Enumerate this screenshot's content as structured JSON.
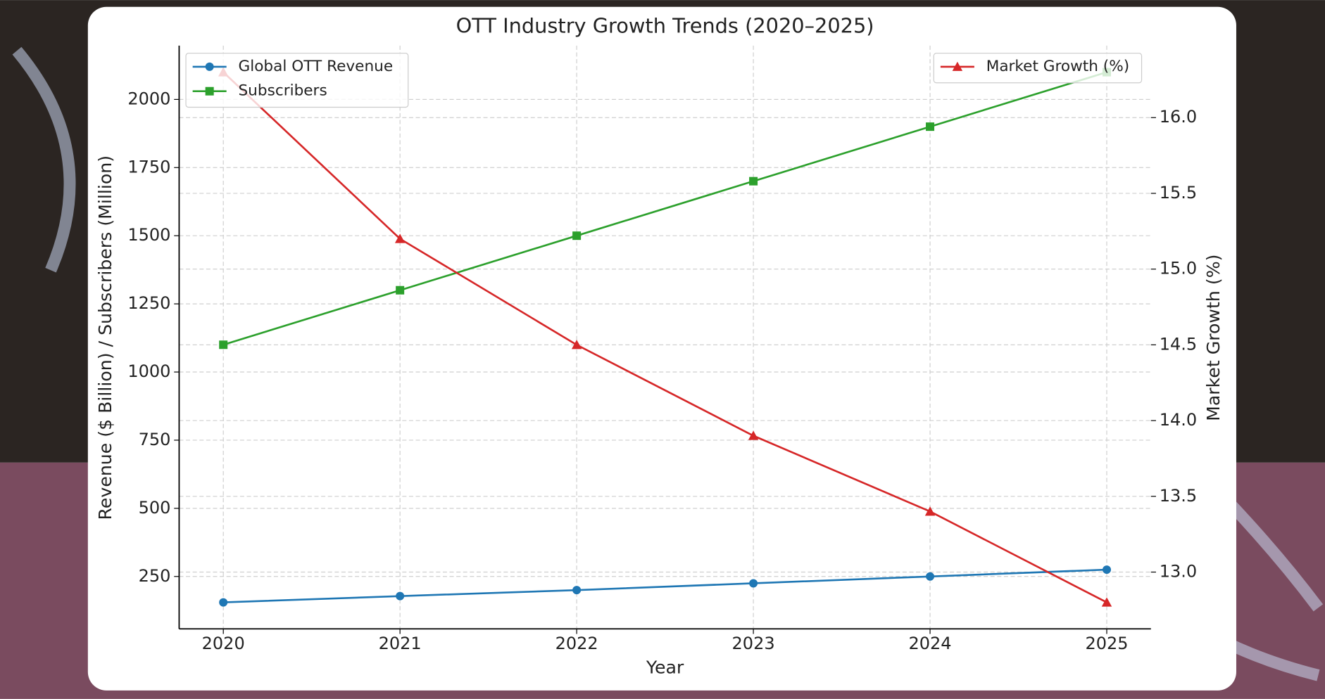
{
  "chart_data": {
    "type": "line",
    "title": "OTT Industry Growth Trends (2020–2025)",
    "x_label": "Year",
    "y_label": "Revenue ($ Billion) / Subscribers (Million)",
    "y2_label": "Market Growth (%)",
    "x": [
      2020,
      2021,
      2022,
      2023,
      2024,
      2025
    ],
    "series": [
      {
        "name": "Global OTT Revenue",
        "color": "#1f77b4",
        "marker": "circle",
        "values": [
          155,
          178,
          200,
          225,
          250,
          275
        ]
      },
      {
        "name": "Subscribers",
        "color": "#2ca02c",
        "marker": "square",
        "values": [
          1100,
          1300,
          1500,
          1700,
          1900,
          2100
        ]
      },
      {
        "name": "Market Growth (%)",
        "color": "#d62728",
        "marker": "triangle",
        "axis": "y2",
        "values": [
          16.3,
          15.2,
          14.5,
          13.9,
          13.4,
          12.8
        ]
      }
    ],
    "xlim": [
      2019.75,
      2025.25
    ],
    "xticks": [
      2020,
      2021,
      2022,
      2023,
      2024,
      2025
    ],
    "ylim": [
      57.75,
      2197.25
    ],
    "yticks": [
      250,
      500,
      750,
      1000,
      1250,
      1500,
      1750,
      2000
    ],
    "y2lim": [
      12.625,
      16.475
    ],
    "y2ticks": [
      {
        "value": 13,
        "label": "13.0"
      },
      13.5,
      {
        "value": 14,
        "label": "14.0"
      },
      14.5,
      {
        "value": 15,
        "label": "15.0"
      },
      15.5,
      {
        "value": 16,
        "label": "16.0"
      }
    ],
    "y2_color": "#d62728",
    "grid": true,
    "legend": "upper left",
    "legend_y2": "upper right"
  }
}
